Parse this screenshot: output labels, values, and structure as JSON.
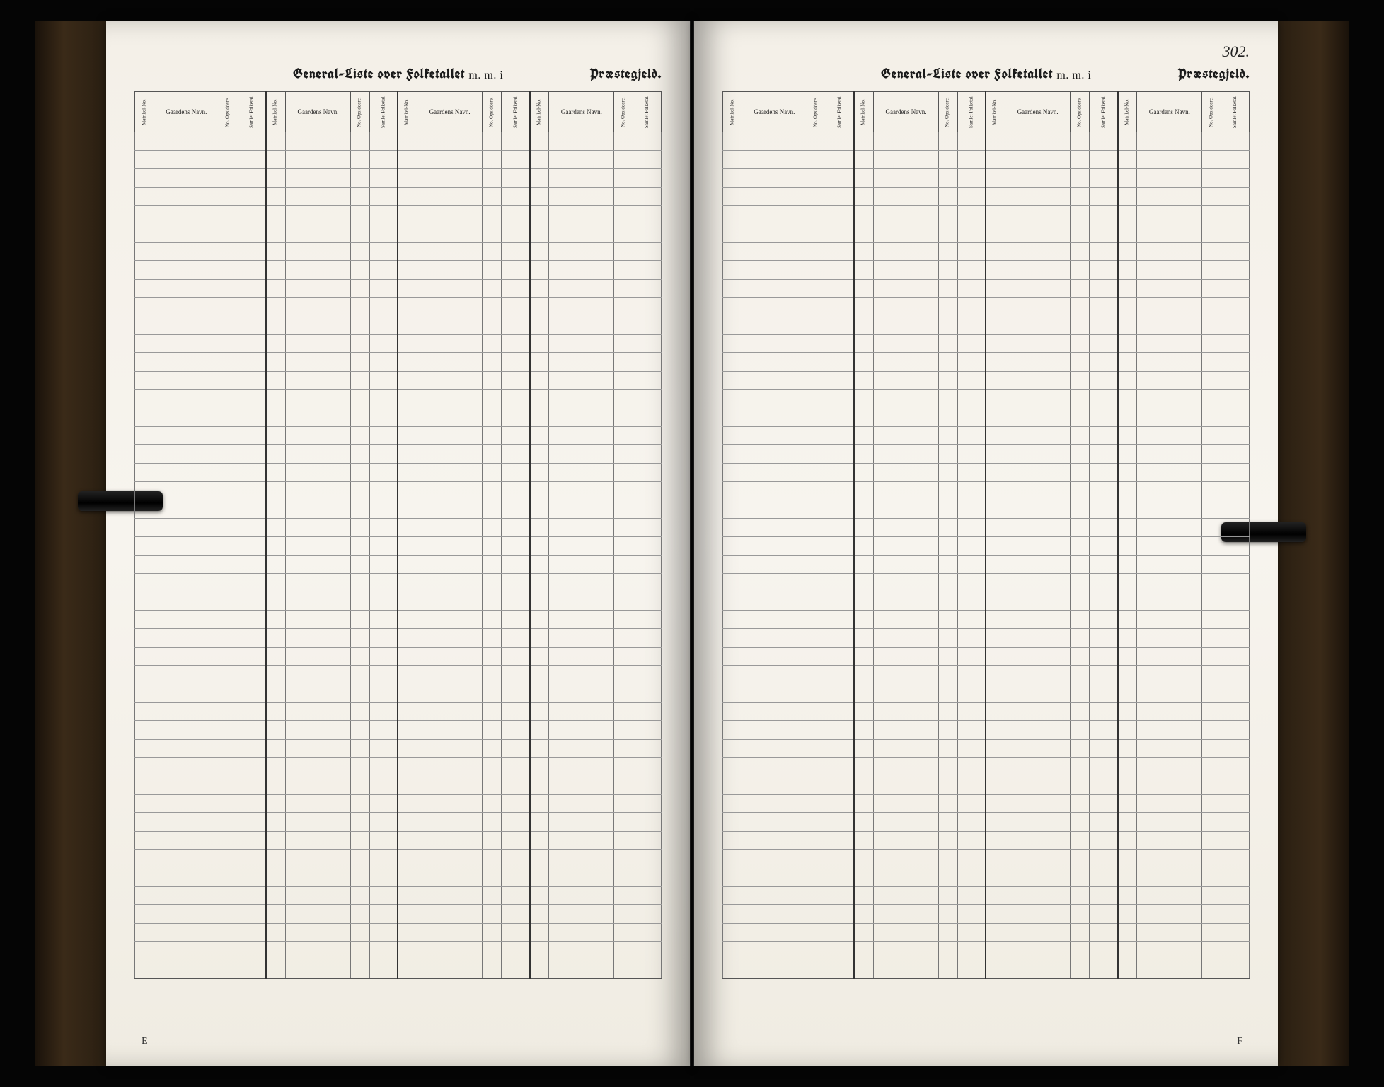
{
  "document": {
    "folio_number": "302.",
    "signature_left": "E",
    "signature_right": "F",
    "title_main": "General-Liste over Folketallet",
    "title_suffix": "m. m. i",
    "title_right": "Præstegjeld.",
    "colors": {
      "paper": "#f4f0e8",
      "ink": "#1a1a1a",
      "rule": "#777777",
      "heavy_rule": "#333333",
      "background": "#050505",
      "spine": "#2a1f12"
    },
    "column_group": {
      "headers": [
        {
          "key": "matr_no",
          "label": "Matrikel-No.",
          "rotated": true,
          "width": "3%"
        },
        {
          "key": "gaard",
          "label": "Gaardens Navn.",
          "rotated": false,
          "width": "14%"
        },
        {
          "key": "opsid",
          "label": "No. Opsiddere.",
          "rotated": true,
          "width": "3%"
        },
        {
          "key": "folketal",
          "label": "Samlet Folketal.",
          "rotated": true,
          "width": "5%"
        }
      ],
      "repeat": 4
    },
    "body_rows": 46,
    "typography": {
      "title_fontsize_pt": 15,
      "header_fontsize_pt": 7,
      "folio_fontsize_pt": 16
    }
  }
}
